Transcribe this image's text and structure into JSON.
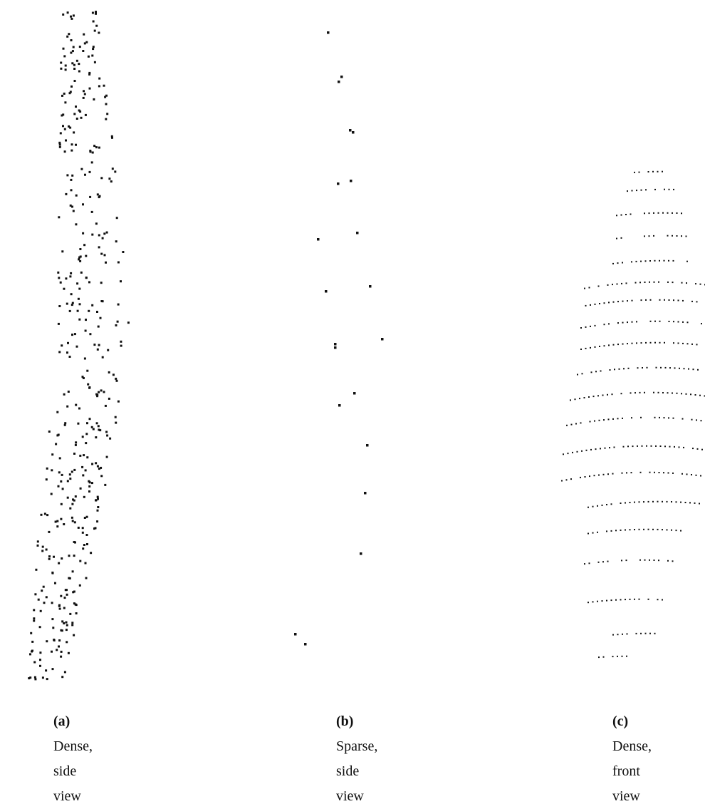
{
  "figure": {
    "panels": [
      {
        "label": "(a)",
        "caption": "Dense, side view"
      },
      {
        "label": "(b)",
        "caption": "Sparse, side view"
      },
      {
        "label": "(c)",
        "caption": "Dense, front view"
      }
    ]
  }
}
